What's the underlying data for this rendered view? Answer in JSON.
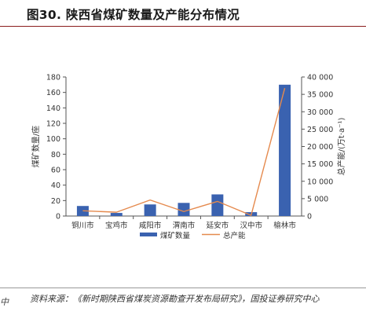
{
  "page": {
    "fig_title": "图30. 陕西省煤矿数量及产能分布情况",
    "left_fragment": "中",
    "source_note": "资料来源：《新时期陕西省煤炭资源勘查开发布局研究》，国投证券研究中心"
  },
  "chart_data": {
    "type": "bar",
    "categories": [
      "铜川市",
      "宝鸡市",
      "咸阳市",
      "渭南市",
      "延安市",
      "汉中市",
      "榆林市"
    ],
    "series": [
      {
        "name": "煤矿数量",
        "type": "bar",
        "axis": "left",
        "color": "#3a62b0",
        "values": [
          13,
          4,
          15,
          17,
          28,
          5,
          170
        ]
      },
      {
        "name": "总产能",
        "type": "line",
        "axis": "right",
        "color": "#e58a4e",
        "values": [
          1500,
          1100,
          4600,
          1300,
          4200,
          200,
          36800
        ]
      }
    ],
    "ylabel": "煤矿数量/座",
    "y2label": "总产能/(万t·a⁻¹)",
    "ylim": [
      0,
      180
    ],
    "y2lim": [
      0,
      40000
    ],
    "yticks": [
      "0",
      "20",
      "40",
      "60",
      "80",
      "100",
      "120",
      "140",
      "160",
      "180"
    ],
    "y2ticks": [
      "0",
      "5 000",
      "10 000",
      "15 000",
      "20 000",
      "25 000",
      "30 000",
      "35 000",
      "40 000"
    ],
    "legend": {
      "position": "bottom",
      "bar_label": "煤矿数量",
      "line_label": "总产能"
    }
  }
}
